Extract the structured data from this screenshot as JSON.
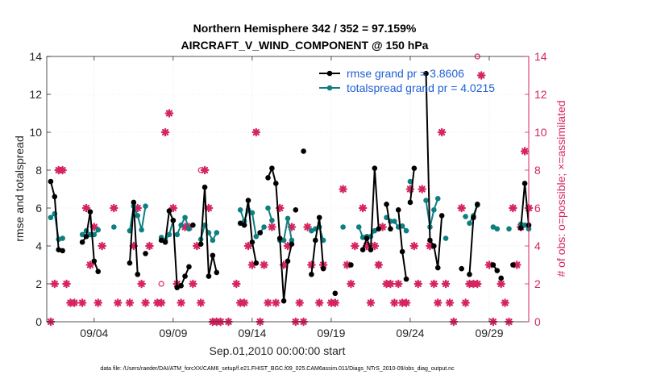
{
  "chart_data": {
    "type": "line",
    "title_line1": "Northern Hemisphere 342 / 352 = 97.159%",
    "title_line2": "AIRCRAFT_V_WIND_COMPONENT @ 150 hPa",
    "xlabel": "Sep.01,2010 00:00:00 start",
    "ylabel_left": "rmse and totalspread",
    "ylabel_right": "# of obs: o=possible; ×=assimilated",
    "footnote": "data file: /Users/raeder/DAI/ATM_forcXX/CAM6_setup/f.e21.FHIST_BGC.f09_025.CAM6assim.011/Diags_NTrS_2010-09/obs_diag_output.nc",
    "ylim": [
      0,
      14
    ],
    "ylim_right": [
      0,
      14
    ],
    "xlim": [
      0,
      30.5
    ],
    "yticks": [
      "0",
      "2",
      "4",
      "6",
      "8",
      "10",
      "12",
      "14"
    ],
    "xticks": [
      {
        "label": "09/04",
        "value": 3
      },
      {
        "label": "09/09",
        "value": 8
      },
      {
        "label": "09/14",
        "value": 13
      },
      {
        "label": "09/19",
        "value": 18
      },
      {
        "label": "09/24",
        "value": 23
      },
      {
        "label": "09/29",
        "value": 28
      }
    ],
    "legend": {
      "placement": "top-right",
      "rmse_label": "rmse grand pr = 3.8606",
      "spread_label": "totalspread grand pr = 4.0215"
    },
    "colors": {
      "rmse": "#000000",
      "spread": "#0e7f80",
      "obs": "#d6245f"
    },
    "series": [
      {
        "name": "rmse",
        "segments": [
          [
            [
              0.25,
              7.4
            ],
            [
              0.5,
              6.6
            ],
            [
              0.75,
              3.8
            ],
            [
              1.0,
              3.75
            ]
          ],
          [
            [
              2.25,
              4.2
            ],
            [
              2.5,
              4.5
            ],
            [
              2.75,
              5.8
            ],
            [
              3.0,
              3.2
            ],
            [
              3.25,
              2.65
            ]
          ],
          [
            [
              5.25,
              3.1
            ],
            [
              5.5,
              6.3
            ],
            [
              5.75,
              2.5
            ]
          ],
          [
            [
              6.25,
              3.6
            ]
          ],
          [
            [
              7.25,
              4.3
            ],
            [
              7.5,
              4.2
            ],
            [
              7.75,
              5.85
            ],
            [
              8.0,
              5.35
            ],
            [
              8.25,
              1.8
            ],
            [
              8.5,
              1.9
            ],
            [
              8.75,
              2.4
            ],
            [
              9.0,
              2.9
            ]
          ],
          [
            [
              9.25,
              5.1
            ]
          ],
          [
            [
              9.75,
              4.1
            ],
            [
              10.0,
              7.1
            ],
            [
              10.25,
              2.4
            ],
            [
              10.5,
              3.5
            ],
            [
              10.75,
              2.6
            ]
          ],
          [
            [
              12.25,
              5.2
            ],
            [
              12.5,
              5.1
            ],
            [
              12.75,
              6.4
            ],
            [
              13.0,
              4.2
            ],
            [
              13.25,
              3.1
            ]
          ],
          [
            [
              13.5,
              4.7
            ]
          ],
          [
            [
              14.0,
              7.6
            ],
            [
              14.25,
              8.1
            ],
            [
              14.5,
              7.3
            ],
            [
              14.75,
              4.4
            ],
            [
              15.0,
              1.1
            ],
            [
              15.25,
              3.2
            ],
            [
              15.5,
              4.1
            ]
          ],
          [
            [
              15.75,
              5.9
            ]
          ],
          [
            [
              16.25,
              9.0
            ]
          ],
          [
            [
              16.75,
              2.5
            ],
            [
              17.0,
              4.3
            ],
            [
              17.25,
              5.5
            ],
            [
              17.5,
              2.8
            ]
          ],
          [
            [
              18.25,
              1.5
            ]
          ],
          [
            [
              19.25,
              3.0
            ]
          ],
          [
            [
              20.0,
              3.8
            ],
            [
              20.25,
              4.4
            ],
            [
              20.5,
              3.8
            ],
            [
              20.75,
              8.1
            ],
            [
              21.0,
              4.9
            ]
          ],
          [
            [
              21.5,
              6.2
            ],
            [
              21.75,
              4.9
            ]
          ],
          [
            [
              22.25,
              5.9
            ],
            [
              22.5,
              3.7
            ],
            [
              22.75,
              2.25
            ]
          ],
          [
            [
              23.0,
              6.3
            ],
            [
              23.25,
              8.1
            ]
          ],
          [
            [
              24.0,
              13.1
            ],
            [
              24.25,
              4.3
            ],
            [
              24.5,
              4.0
            ],
            [
              24.75,
              2.85
            ],
            [
              25.0,
              5.6
            ]
          ],
          [
            [
              26.25,
              2.8
            ]
          ],
          [
            [
              26.75,
              2.5
            ],
            [
              27.0,
              5.5
            ],
            [
              27.25,
              6.2
            ]
          ],
          [
            [
              28.25,
              3.0
            ],
            [
              28.5,
              2.7
            ]
          ],
          [
            [
              28.75,
              2.3
            ]
          ],
          [
            [
              29.5,
              3.0
            ]
          ],
          [
            [
              30.0,
              4.95
            ],
            [
              30.25,
              7.3
            ],
            [
              30.5,
              5.1
            ],
            [
              30.75,
              7.0
            ]
          ],
          [
            [
              31.25,
              5.6
            ]
          ]
        ]
      },
      {
        "name": "totalspread",
        "segments": [
          [
            [
              0.25,
              5.5
            ],
            [
              0.5,
              5.7
            ],
            [
              0.75,
              4.35
            ],
            [
              1.0,
              4.4
            ]
          ],
          [
            [
              2.25,
              4.6
            ],
            [
              2.5,
              4.8
            ],
            [
              2.75,
              4.6
            ],
            [
              3.0,
              4.6
            ],
            [
              3.25,
              4.85
            ]
          ],
          [
            [
              4.25,
              5.0
            ]
          ],
          [
            [
              5.25,
              4.8
            ],
            [
              5.5,
              6.1
            ],
            [
              5.75,
              5.6
            ],
            [
              6.0,
              4.85
            ],
            [
              6.25,
              6.1
            ]
          ],
          [
            [
              7.25,
              4.45
            ],
            [
              7.5,
              4.3
            ],
            [
              7.75,
              4.6
            ],
            [
              8.0,
              5.35
            ]
          ],
          [
            [
              8.25,
              4.6
            ],
            [
              8.5,
              5.1
            ],
            [
              8.75,
              5.5
            ],
            [
              9.0,
              4.9
            ]
          ],
          [
            [
              9.75,
              4.35
            ],
            [
              10.0,
              5.1
            ],
            [
              10.25,
              4.7
            ],
            [
              10.5,
              4.3
            ],
            [
              10.75,
              4.7
            ]
          ],
          [
            [
              12.25,
              5.9
            ],
            [
              12.5,
              5.3
            ],
            [
              12.75,
              5.9
            ],
            [
              13.0,
              5.75
            ],
            [
              13.25,
              4.5
            ],
            [
              13.5,
              4.7
            ],
            [
              13.75,
              5.0
            ]
          ],
          [
            [
              14.0,
              6.0
            ],
            [
              14.25,
              5.35
            ]
          ],
          [
            [
              14.75,
              4.3
            ],
            [
              15.0,
              4.3
            ],
            [
              15.25,
              5.45
            ],
            [
              15.5,
              4.3
            ]
          ],
          [
            [
              16.75,
              4.8
            ],
            [
              17.0,
              4.9
            ],
            [
              17.25,
              5.0
            ],
            [
              17.5,
              4.3
            ]
          ],
          [
            [
              18.75,
              5.0
            ]
          ],
          [
            [
              19.75,
              5.0
            ],
            [
              20.0,
              4.45
            ],
            [
              20.25,
              4.5
            ],
            [
              20.5,
              4.5
            ],
            [
              20.75,
              4.8
            ]
          ],
          [
            [
              21.5,
              5.5
            ],
            [
              21.75,
              5.3
            ],
            [
              22.0,
              5.3
            ],
            [
              22.25,
              5.0
            ],
            [
              22.5,
              5.05
            ],
            [
              22.75,
              4.8
            ]
          ],
          [
            [
              23.0,
              7.4
            ]
          ],
          [
            [
              24.0,
              6.4
            ],
            [
              24.25,
              5.0
            ],
            [
              24.5,
              5.9
            ],
            [
              24.75,
              6.5
            ]
          ],
          [
            [
              25.25,
              4.4
            ]
          ],
          [
            [
              26.5,
              5.55
            ]
          ],
          [
            [
              26.75,
              5.2
            ],
            [
              27.0,
              5.6
            ],
            [
              27.25,
              6.15
            ]
          ],
          [
            [
              28.25,
              5.0
            ],
            [
              28.5,
              4.9
            ]
          ],
          [
            [
              29.25,
              4.9
            ]
          ],
          [
            [
              30.0,
              5.15
            ],
            [
              30.25,
              5.1
            ],
            [
              30.5,
              4.9
            ],
            [
              30.75,
              5.0
            ]
          ],
          [
            [
              31.25,
              4.7
            ]
          ]
        ]
      }
    ],
    "obs_possible": [
      [
        0.25,
        0
      ],
      [
        0.5,
        2
      ],
      [
        0.75,
        8
      ],
      [
        1.0,
        8
      ],
      [
        1.25,
        2
      ],
      [
        1.5,
        1
      ],
      [
        1.75,
        1
      ],
      [
        2.25,
        1
      ],
      [
        2.5,
        6
      ],
      [
        2.75,
        3
      ],
      [
        3.0,
        5
      ],
      [
        3.25,
        1
      ],
      [
        3.5,
        4
      ],
      [
        4.25,
        6
      ],
      [
        4.5,
        1
      ],
      [
        5.25,
        1
      ],
      [
        5.5,
        4
      ],
      [
        5.75,
        6
      ],
      [
        6.0,
        2
      ],
      [
        6.25,
        1
      ],
      [
        6.5,
        4
      ],
      [
        7.0,
        1
      ],
      [
        7.25,
        1
      ],
      [
        7.5,
        10
      ],
      [
        7.75,
        11
      ],
      [
        8.0,
        6
      ],
      [
        8.25,
        2
      ],
      [
        8.5,
        1
      ],
      [
        8.75,
        5
      ],
      [
        9.0,
        5
      ],
      [
        9.25,
        2
      ],
      [
        9.5,
        4
      ],
      [
        9.75,
        1
      ],
      [
        10.0,
        8
      ],
      [
        10.25,
        6
      ],
      [
        10.5,
        0
      ],
      [
        10.75,
        0
      ],
      [
        11.0,
        0
      ],
      [
        11.5,
        0
      ],
      [
        12.0,
        2
      ],
      [
        12.25,
        1
      ],
      [
        12.5,
        1
      ],
      [
        12.75,
        4
      ],
      [
        13.0,
        3
      ],
      [
        13.25,
        10
      ],
      [
        13.5,
        0
      ],
      [
        13.75,
        3
      ],
      [
        14.0,
        1
      ],
      [
        14.25,
        5
      ],
      [
        14.5,
        1
      ],
      [
        14.75,
        6
      ],
      [
        15.0,
        3
      ],
      [
        15.25,
        4
      ],
      [
        15.5,
        5
      ],
      [
        15.75,
        0
      ],
      [
        16.0,
        1
      ],
      [
        16.25,
        0
      ],
      [
        16.5,
        5
      ],
      [
        16.75,
        3
      ],
      [
        17.25,
        1
      ],
      [
        17.5,
        3
      ],
      [
        18.0,
        1
      ],
      [
        18.25,
        1
      ],
      [
        18.75,
        7
      ],
      [
        19.0,
        3
      ],
      [
        19.25,
        2
      ],
      [
        19.5,
        4
      ],
      [
        20.0,
        6
      ],
      [
        20.25,
        4
      ],
      [
        20.5,
        1
      ],
      [
        20.75,
        4
      ],
      [
        21.0,
        3
      ],
      [
        21.25,
        5
      ],
      [
        21.5,
        2
      ],
      [
        21.75,
        2
      ],
      [
        22.0,
        1
      ],
      [
        22.25,
        2
      ],
      [
        22.5,
        1
      ],
      [
        22.75,
        1
      ],
      [
        23.0,
        7
      ],
      [
        23.25,
        4
      ],
      [
        23.5,
        2
      ],
      [
        23.75,
        7
      ],
      [
        24.25,
        4
      ],
      [
        24.5,
        2
      ],
      [
        24.75,
        1
      ],
      [
        25.0,
        10
      ],
      [
        25.25,
        2
      ],
      [
        25.5,
        1
      ],
      [
        25.75,
        0
      ],
      [
        26.25,
        6
      ],
      [
        26.5,
        1
      ],
      [
        26.75,
        2
      ],
      [
        27.0,
        2
      ],
      [
        27.25,
        2
      ],
      [
        27.5,
        13
      ],
      [
        28.0,
        3
      ],
      [
        28.25,
        0
      ],
      [
        28.75,
        2
      ],
      [
        29.0,
        1
      ],
      [
        29.25,
        0
      ],
      [
        29.5,
        6
      ],
      [
        29.75,
        3
      ],
      [
        30.0,
        5
      ],
      [
        30.25,
        9
      ],
      [
        30.5,
        6
      ],
      [
        30.75,
        2
      ],
      [
        31.0,
        0
      ]
    ],
    "obs_open": [
      [
        7.25,
        2
      ],
      [
        9.75,
        8
      ],
      [
        21.0,
        3
      ],
      [
        27.25,
        14
      ]
    ]
  }
}
